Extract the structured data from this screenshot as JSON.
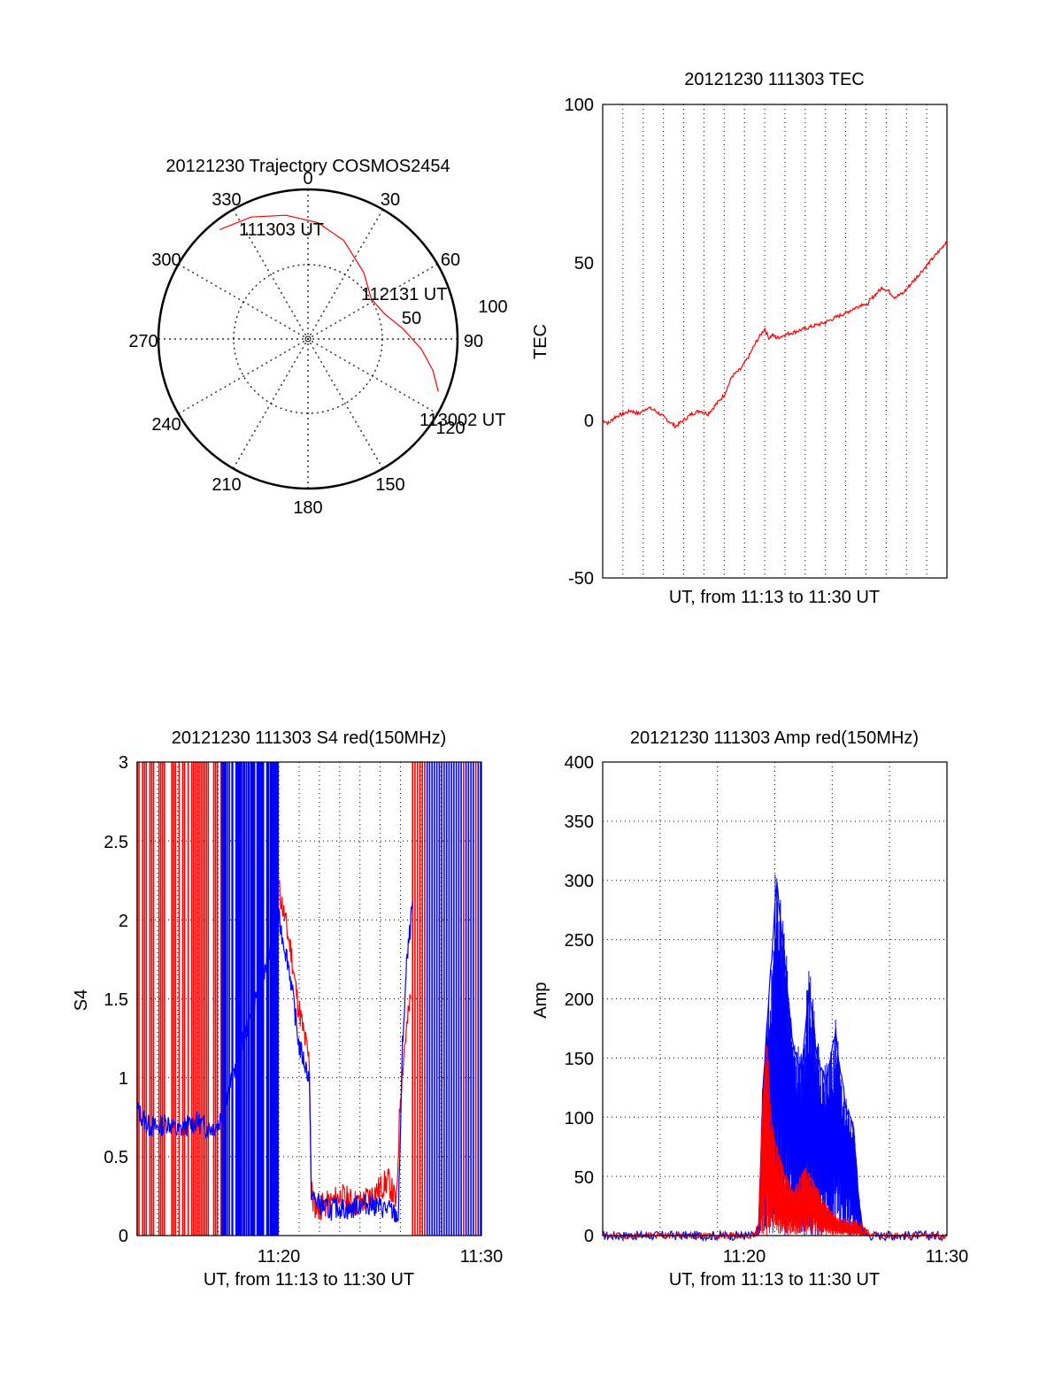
{
  "colors": {
    "red": "#ff0000",
    "blue": "#0000ff",
    "axis": "#000000",
    "grid": "#000000"
  },
  "chart_data": [
    {
      "type": "polar",
      "title": "20121230 Trajectory COSMOS2454",
      "angle_ticks": [
        "0",
        "30",
        "60",
        "90",
        "120",
        "150",
        "180",
        "210",
        "240",
        "270",
        "300",
        "330"
      ],
      "radial_ticks": [
        "50",
        "100"
      ],
      "trajectory": {
        "points": [
          [
            321,
            94
          ],
          [
            335,
            90
          ],
          [
            350,
            84
          ],
          [
            5,
            78
          ],
          [
            20,
            70
          ],
          [
            40,
            58
          ],
          [
            58,
            50
          ],
          [
            72,
            54
          ],
          [
            84,
            64
          ],
          [
            95,
            76
          ],
          [
            104,
            86
          ],
          [
            112,
            94
          ]
        ],
        "start_label": "111303 UT",
        "mid_label": "112131 UT",
        "end_label": "113002 UT"
      }
    },
    {
      "type": "line",
      "title": "20121230 111303 TEC",
      "xlabel": "UT, from 11:13 to 11:30 UT",
      "ylabel": "TEC",
      "ylim": [
        -50,
        100
      ],
      "y_ticks": [
        "100",
        "50",
        "0",
        "-50"
      ],
      "xlim_min": [
        0,
        17
      ],
      "grid": true,
      "series": [
        {
          "color": "red",
          "x": [
            0,
            0.3,
            0.6,
            1.0,
            1.4,
            1.8,
            2.2,
            2.6,
            3.0,
            3.4,
            3.6,
            4.0,
            4.4,
            4.8,
            5.2,
            5.6,
            6.0,
            6.4,
            6.8,
            7.2,
            7.6,
            7.8,
            8.0,
            8.2,
            8.4,
            8.6,
            9.0,
            10.0,
            11.0,
            12.0,
            12.9,
            13.0,
            13.2,
            13.5,
            13.8,
            14.1,
            14.4,
            14.8,
            15.2,
            15.6,
            16.0,
            16.4,
            16.8,
            17.0
          ],
          "y": [
            0,
            -1,
            1,
            2,
            3,
            2,
            4,
            3,
            1,
            -1,
            -2,
            0,
            2,
            3,
            2,
            5,
            8,
            14,
            16,
            20,
            25,
            27,
            29,
            26,
            27,
            26,
            27,
            29,
            31,
            34,
            37,
            36,
            38,
            40,
            42,
            41,
            39,
            40,
            43,
            46,
            49,
            52,
            55,
            57
          ]
        }
      ]
    },
    {
      "type": "line",
      "title": "20121230 111303 S4 red(150MHz)",
      "xlabel": "UT, from 11:13 to 11:30 UT",
      "ylabel": "S4",
      "ylim": [
        0,
        3
      ],
      "y_ticks": [
        "3",
        "2.5",
        "2",
        "1.5",
        "1",
        "0.5",
        "0"
      ],
      "x_ticks": [
        "11:20",
        "11:30"
      ],
      "grid": true,
      "series": [
        {
          "color": "red",
          "x": [
            7.0,
            7.3,
            7.6,
            7.9,
            8.2,
            8.5,
            8.6,
            8.7,
            9.0,
            9.5,
            10.0,
            10.5,
            11.0,
            11.5,
            12.0,
            12.4,
            12.8,
            13.0,
            13.2,
            13.5
          ],
          "y": [
            2.2,
            2.0,
            1.8,
            1.5,
            1.3,
            1.1,
            0.3,
            0.2,
            0.18,
            0.2,
            0.25,
            0.22,
            0.2,
            0.25,
            0.3,
            0.35,
            0.2,
            0.9,
            1.2,
            1.5
          ]
        },
        {
          "color": "blue",
          "x": [
            0,
            0.5,
            1.0,
            1.5,
            2.0,
            2.5,
            3.0,
            3.5,
            4.0,
            7.0,
            7.5,
            8.0,
            8.5,
            8.6,
            9.0,
            9.5,
            10.0,
            10.5,
            11.0,
            11.5,
            12.0,
            12.5,
            12.9,
            13.1,
            13.3,
            13.6
          ],
          "y": [
            0.8,
            0.7,
            0.68,
            0.72,
            0.66,
            0.7,
            0.72,
            0.68,
            0.7,
            2.0,
            1.7,
            1.2,
            1.0,
            0.25,
            0.2,
            0.16,
            0.18,
            0.16,
            0.2,
            0.2,
            0.18,
            0.16,
            0.12,
            1.2,
            1.7,
            2.1
          ]
        }
      ]
    },
    {
      "type": "line",
      "title": "20121230 111303 Amp red(150MHz)",
      "xlabel": "UT, from 11:13 to 11:30 UT",
      "ylabel": "Amp",
      "ylim": [
        0,
        400
      ],
      "y_ticks": [
        "400",
        "350",
        "300",
        "250",
        "200",
        "150",
        "100",
        "50",
        "0"
      ],
      "x_ticks": [
        "11:20",
        "11:30"
      ],
      "grid": true,
      "series": [
        {
          "color": "blue",
          "x": [
            0,
            7.5,
            7.7,
            7.9,
            8.2,
            8.6,
            9.0,
            9.4,
            9.8,
            10.2,
            10.6,
            11.0,
            11.5,
            12.0,
            12.4,
            12.6,
            12.8,
            13.0,
            17.0
          ],
          "y": [
            0,
            0,
            5,
            120,
            200,
            300,
            230,
            160,
            140,
            210,
            150,
            130,
            170,
            110,
            90,
            40,
            10,
            0,
            0
          ]
        },
        {
          "color": "red",
          "x": [
            0,
            7.5,
            7.7,
            7.9,
            8.1,
            8.3,
            8.6,
            9.0,
            9.4,
            10.0,
            10.5,
            11.0,
            11.5,
            12.0,
            12.5,
            13.0,
            13.2,
            17.0
          ],
          "y": [
            0,
            0,
            10,
            110,
            160,
            100,
            70,
            50,
            35,
            55,
            40,
            25,
            15,
            12,
            10,
            5,
            0,
            0
          ]
        }
      ]
    }
  ]
}
